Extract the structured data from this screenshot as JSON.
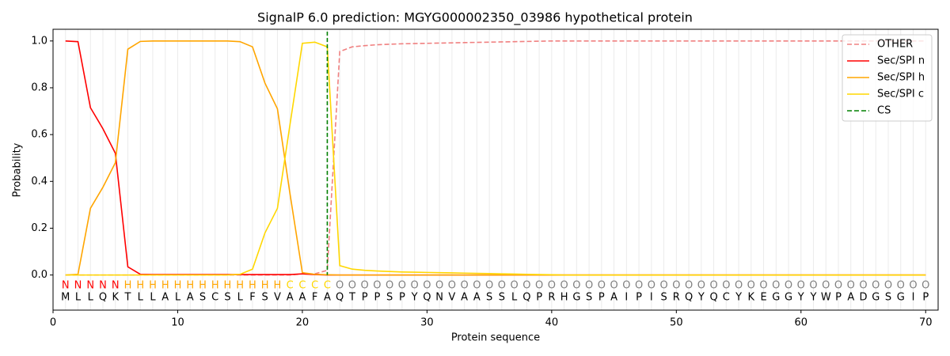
{
  "chart_data": {
    "type": "line",
    "title": "SignalP 6.0 prediction: MGYG000002350_03986 hypothetical protein",
    "xlabel": "Protein sequence",
    "ylabel": "Probability",
    "x": [
      1,
      2,
      3,
      4,
      5,
      6,
      7,
      8,
      9,
      10,
      11,
      12,
      13,
      14,
      15,
      16,
      17,
      18,
      19,
      20,
      21,
      22,
      23,
      24,
      25,
      26,
      27,
      28,
      29,
      30,
      31,
      32,
      33,
      34,
      35,
      36,
      37,
      38,
      39,
      40,
      41,
      42,
      43,
      44,
      45,
      46,
      47,
      48,
      49,
      50,
      51,
      52,
      53,
      54,
      55,
      56,
      57,
      58,
      59,
      60,
      61,
      62,
      63,
      64,
      65,
      66,
      67,
      68,
      69,
      70
    ],
    "residues": [
      "M",
      "L",
      "L",
      "Q",
      "K",
      "T",
      "L",
      "L",
      "A",
      "L",
      "A",
      "S",
      "C",
      "S",
      "L",
      "F",
      "S",
      "V",
      "A",
      "A",
      "F",
      "A",
      "Q",
      "T",
      "P",
      "P",
      "S",
      "P",
      "Y",
      "Q",
      "N",
      "V",
      "A",
      "A",
      "S",
      "S",
      "L",
      "Q",
      "P",
      "R",
      "H",
      "G",
      "S",
      "P",
      "A",
      "I",
      "P",
      "I",
      "S",
      "R",
      "Q",
      "Y",
      "Q",
      "C",
      "Y",
      "K",
      "E",
      "G",
      "G",
      "Y",
      "Y",
      "W",
      "P",
      "A",
      "D",
      "G",
      "S",
      "G",
      "I",
      "P"
    ],
    "labels": [
      "N",
      "N",
      "N",
      "N",
      "N",
      "H",
      "H",
      "H",
      "H",
      "H",
      "H",
      "H",
      "H",
      "H",
      "H",
      "H",
      "H",
      "H",
      "C",
      "C",
      "C",
      "C",
      "O",
      "O",
      "O",
      "O",
      "O",
      "O",
      "O",
      "O",
      "O",
      "O",
      "O",
      "O",
      "O",
      "O",
      "O",
      "O",
      "O",
      "O",
      "O",
      "O",
      "O",
      "O",
      "O",
      "O",
      "O",
      "O",
      "O",
      "O",
      "O",
      "O",
      "O",
      "O",
      "O",
      "O",
      "O",
      "O",
      "O",
      "O",
      "O",
      "O",
      "O",
      "O",
      "O",
      "O",
      "O",
      "O",
      "O",
      "O"
    ],
    "label_colors": {
      "N": "#ff0000",
      "H": "#ffa500",
      "C": "#ffd700",
      "O": "#808080"
    },
    "series": [
      {
        "name": "OTHER",
        "color": "#f08080",
        "dashed": true,
        "values": [
          0,
          0,
          0,
          0,
          0,
          0,
          0,
          0,
          0,
          0,
          0,
          0,
          0,
          0,
          0,
          0,
          0,
          0,
          0,
          0.005,
          0.005,
          0.02,
          0.955,
          0.975,
          0.98,
          0.984,
          0.986,
          0.988,
          0.989,
          0.99,
          0.991,
          0.992,
          0.993,
          0.994,
          0.995,
          0.996,
          0.997,
          0.998,
          0.999,
          1,
          1,
          1,
          1,
          1,
          1,
          1,
          1,
          1,
          1,
          1,
          1,
          1,
          1,
          1,
          1,
          1,
          1,
          1,
          1,
          1,
          1,
          1,
          1,
          1,
          1,
          1,
          1,
          1,
          1,
          1
        ]
      },
      {
        "name": "Sec/SPI n",
        "color": "#ff0000",
        "dashed": false,
        "values": [
          1.0,
          0.997,
          0.715,
          0.625,
          0.52,
          0.035,
          0.003,
          0.002,
          0.002,
          0.002,
          0.002,
          0.002,
          0.002,
          0.002,
          0.002,
          0.002,
          0.002,
          0.002,
          0.002,
          0.005,
          0.002,
          0,
          0,
          0,
          0,
          0,
          0,
          0,
          0,
          0,
          0,
          0,
          0,
          0,
          0,
          0,
          0,
          0,
          0,
          0,
          0,
          0,
          0,
          0,
          0,
          0,
          0,
          0,
          0,
          0,
          0,
          0,
          0,
          0,
          0,
          0,
          0,
          0,
          0,
          0,
          0,
          0,
          0,
          0,
          0,
          0,
          0,
          0,
          0,
          0
        ]
      },
      {
        "name": "Sec/SPI h",
        "color": "#ffa500",
        "dashed": false,
        "values": [
          0,
          0.003,
          0.285,
          0.375,
          0.48,
          0.965,
          0.998,
          1,
          1,
          1,
          1,
          1,
          1,
          1,
          0.997,
          0.975,
          0.82,
          0.71,
          0.35,
          0.01,
          0.003,
          0.001,
          0,
          0,
          0,
          0,
          0,
          0,
          0,
          0,
          0,
          0,
          0,
          0,
          0,
          0,
          0,
          0,
          0,
          0,
          0,
          0,
          0,
          0,
          0,
          0,
          0,
          0,
          0,
          0,
          0,
          0,
          0,
          0,
          0,
          0,
          0,
          0,
          0,
          0,
          0,
          0,
          0,
          0,
          0,
          0,
          0,
          0,
          0,
          0
        ]
      },
      {
        "name": "Sec/SPI c",
        "color": "#ffd700",
        "dashed": false,
        "values": [
          0,
          0,
          0,
          0,
          0,
          0,
          0,
          0,
          0,
          0,
          0,
          0,
          0,
          0,
          0.003,
          0.025,
          0.18,
          0.285,
          0.64,
          0.99,
          0.995,
          0.975,
          0.04,
          0.025,
          0.02,
          0.017,
          0.015,
          0.013,
          0.012,
          0.011,
          0.01,
          0.009,
          0.008,
          0.007,
          0.006,
          0.005,
          0.004,
          0.003,
          0.002,
          0.001,
          0,
          0,
          0,
          0,
          0,
          0,
          0,
          0,
          0,
          0,
          0,
          0,
          0,
          0,
          0,
          0,
          0,
          0,
          0,
          0,
          0,
          0,
          0,
          0,
          0,
          0,
          0,
          0,
          0,
          0
        ]
      }
    ],
    "cs": {
      "name": "CS",
      "color": "#008000",
      "x": 22
    },
    "xlim": [
      0,
      71
    ],
    "ylim": [
      -0.15,
      1.05
    ],
    "xticks": [
      0,
      10,
      20,
      30,
      40,
      50,
      60,
      70
    ],
    "yticks": [
      {
        "value": 0,
        "label": "0.0"
      },
      {
        "value": 0.2,
        "label": "0.2"
      },
      {
        "value": 0.4,
        "label": "0.4"
      },
      {
        "value": 0.6,
        "label": "0.6"
      },
      {
        "value": 0.8,
        "label": "0.8"
      },
      {
        "value": 1.0,
        "label": "1.0"
      }
    ],
    "legend": "upper right"
  }
}
